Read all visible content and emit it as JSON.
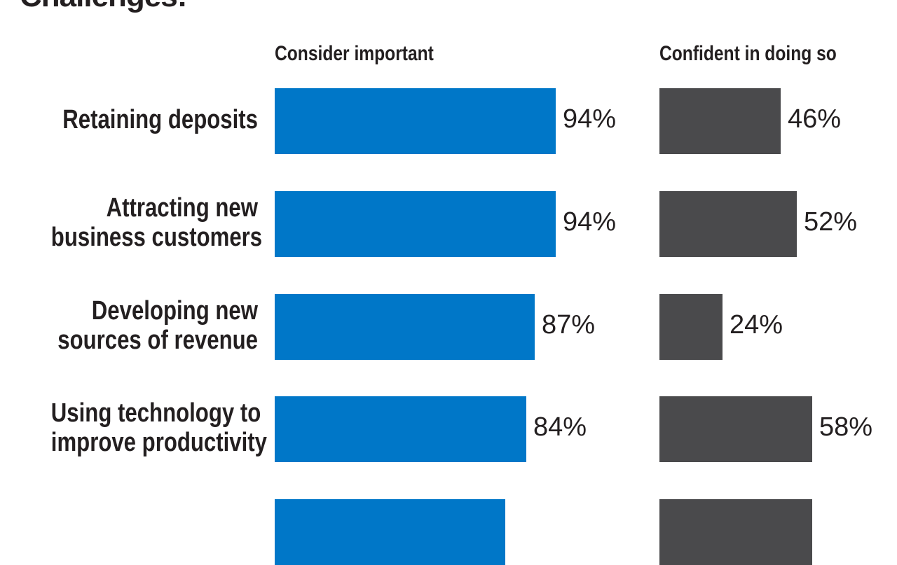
{
  "chart_data": {
    "type": "bar",
    "title": "Challenges:",
    "categories": [
      "Retaining deposits",
      "Attracting new business customers",
      "Developing new sources of revenue",
      "Using technology to improve productivity",
      ""
    ],
    "category_lines": [
      [
        "Retaining deposits"
      ],
      [
        "Attracting new",
        "business customers"
      ],
      [
        "Developing new",
        "sources of revenue"
      ],
      [
        "Using technology to",
        "improve productivity"
      ],
      []
    ],
    "series": [
      {
        "name": "Consider important",
        "values": [
          94,
          94,
          87,
          84,
          77
        ],
        "labels": [
          "94%",
          "94%",
          "87%",
          "84%",
          ""
        ]
      },
      {
        "name": "Confident in doing so",
        "values": [
          46,
          52,
          24,
          58,
          58
        ],
        "labels": [
          "46%",
          "52%",
          "24%",
          "58%",
          ""
        ]
      }
    ],
    "colors": {
      "consider": "#0077c8",
      "confident": "#4a4a4c"
    },
    "unit": "%",
    "ylim": [
      0,
      100
    ],
    "grid": false,
    "legend": "top"
  }
}
